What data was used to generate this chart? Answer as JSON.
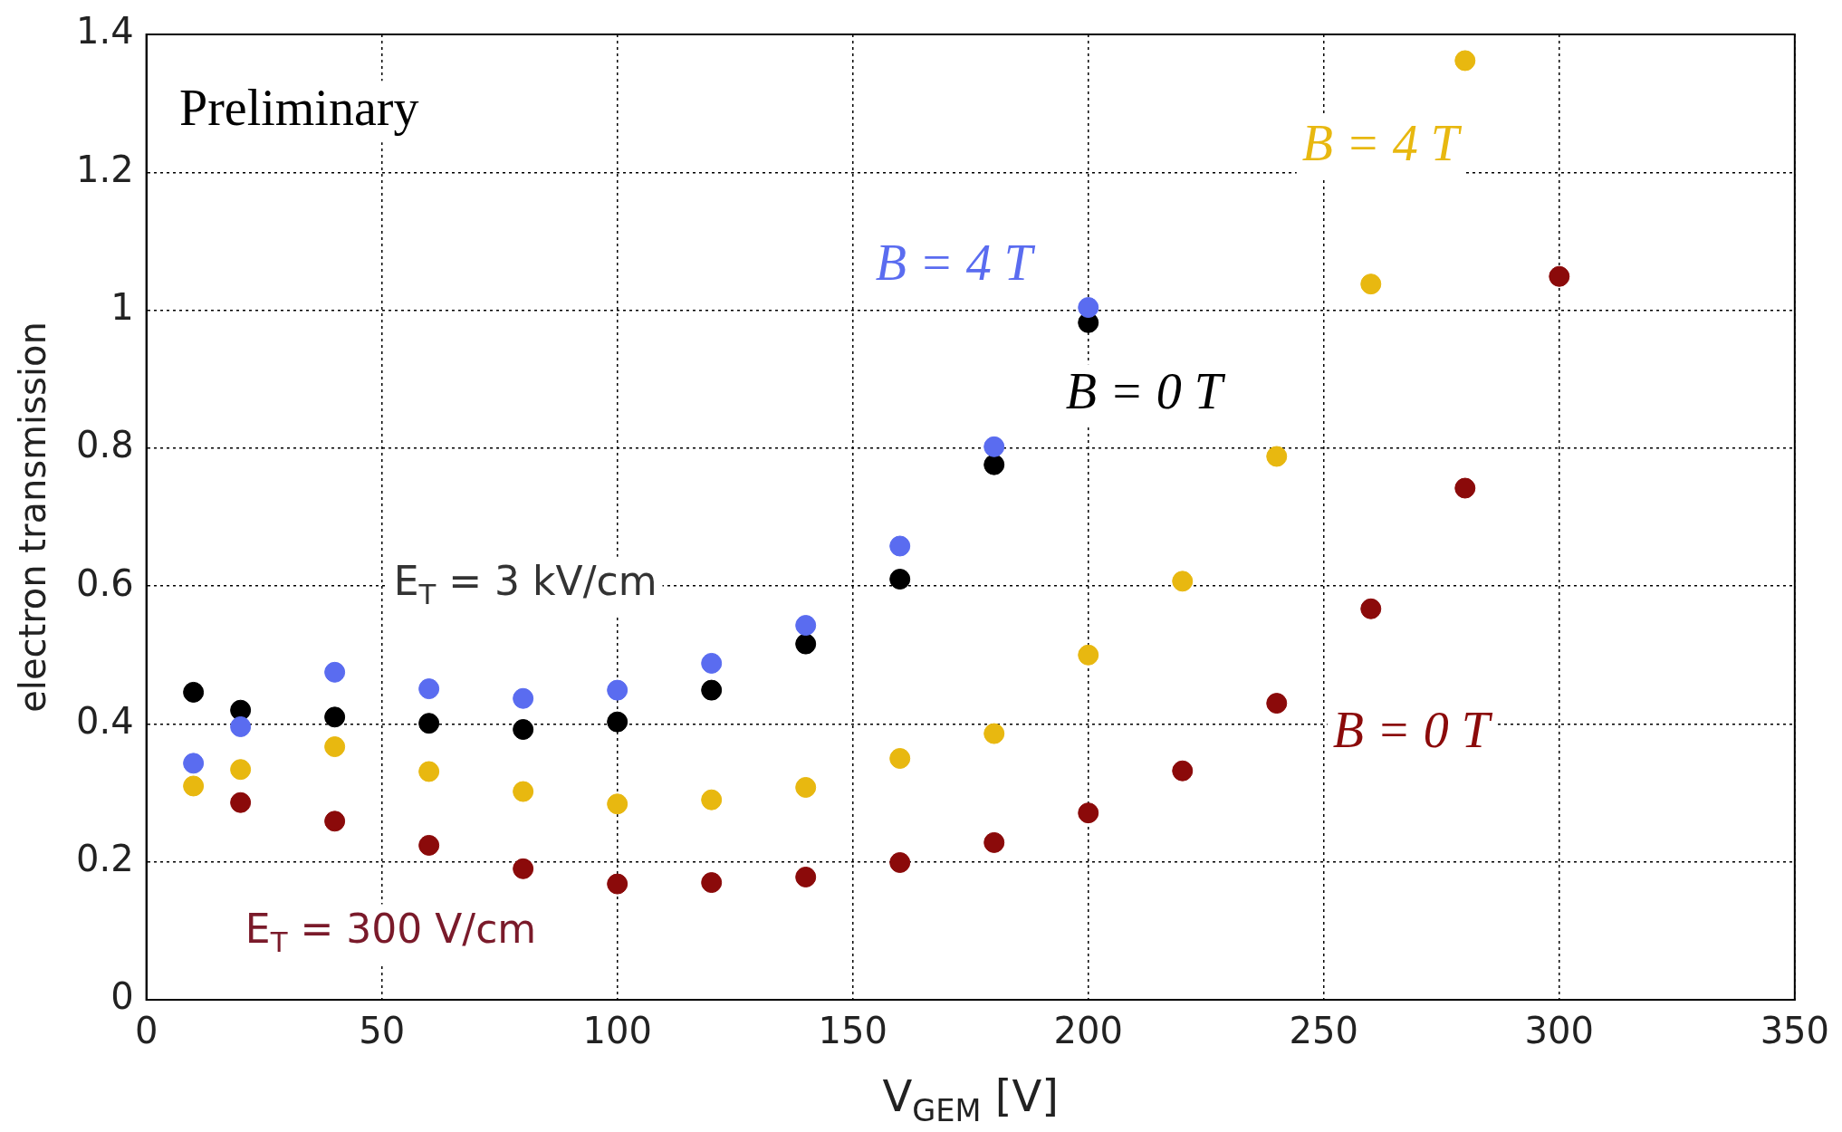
{
  "chart_data": {
    "type": "scatter",
    "xlabel": "V$_{GEM}$ [V]",
    "ylabel": "electron transmission",
    "x": [
      10,
      20,
      40,
      60,
      80,
      100,
      120,
      140,
      160,
      180,
      200,
      220,
      240,
      260,
      280,
      300
    ],
    "series": [
      {
        "name": "B = 4 T",
        "color": "#5a6cf0",
        "values": [
          0.343,
          0.396,
          0.475,
          0.451,
          0.437,
          0.449,
          0.488,
          0.543,
          0.658,
          0.802,
          1.004,
          null,
          null,
          null,
          null,
          null
        ]
      },
      {
        "name": "B = 0 T",
        "color": "#000000",
        "values": [
          0.446,
          0.42,
          0.41,
          0.401,
          0.392,
          0.403,
          0.449,
          0.516,
          0.61,
          0.776,
          0.982,
          null,
          null,
          null,
          null,
          null
        ]
      },
      {
        "name": "B = 4 T",
        "color": "#e8b810",
        "values": [
          0.31,
          0.334,
          0.367,
          0.331,
          0.302,
          0.284,
          0.29,
          0.308,
          0.35,
          0.386,
          0.5,
          0.607,
          0.788,
          1.038,
          1.362,
          null
        ]
      },
      {
        "name": "B = 0 T",
        "color": "#8b0a0a",
        "values": [
          null,
          0.286,
          0.259,
          0.224,
          0.19,
          0.168,
          0.17,
          0.178,
          0.199,
          0.228,
          0.271,
          0.332,
          0.43,
          0.567,
          0.742,
          1.049
        ]
      }
    ],
    "annotations": [
      "Preliminary",
      "E$_{T}$ = 3 kV/cm",
      "E$_{T}$ = 300 V/cm"
    ],
    "xlim": [
      0,
      350
    ],
    "xticks": [
      0,
      50,
      100,
      150,
      200,
      250,
      300,
      350
    ],
    "ylim": [
      0,
      1.4
    ],
    "yticks": [
      0,
      0.2,
      0.4,
      0.6,
      0.8,
      1,
      1.2,
      1.4
    ],
    "grid": true,
    "legend": false,
    "marker": "circle"
  }
}
